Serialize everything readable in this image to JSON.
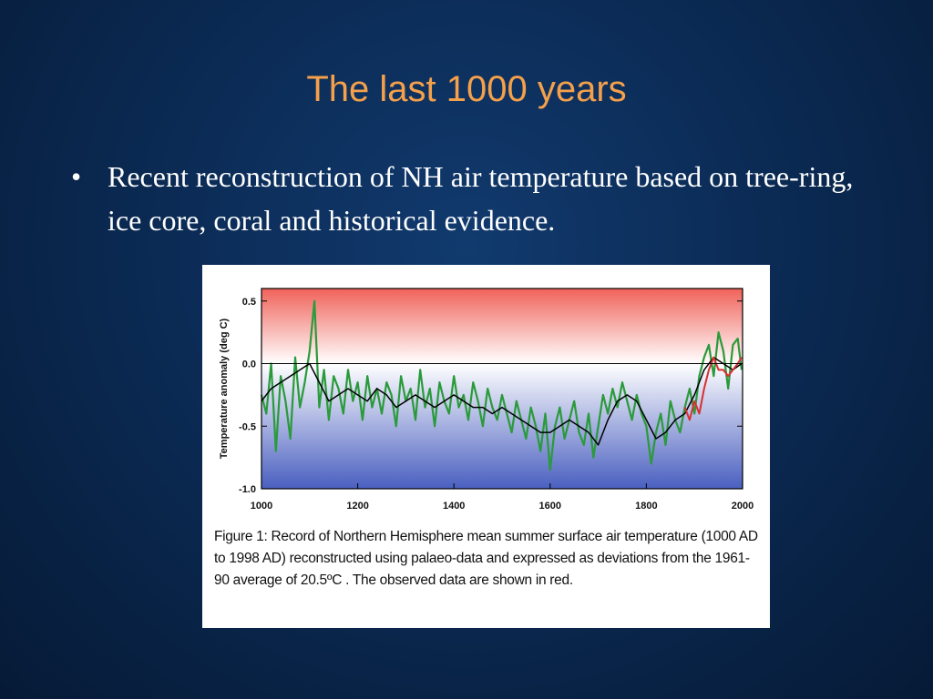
{
  "slide": {
    "title": "The last 1000 years",
    "bullets": [
      {
        "marker": "•",
        "text": "Recent reconstruction of NH air temperature based on tree-ring, ice core, coral and historical evidence."
      }
    ]
  },
  "figure": {
    "caption": "Figure 1:  Record of Northern Hemisphere mean summer surface air temperature (1000 AD to 1998 AD) reconstructed using palaeo-data and expressed as deviations from the 1961-90 average of 20.5ºC . The observed data are shown in red."
  },
  "chart_data": {
    "type": "line",
    "ylabel": "Temperature anomaly (deg C)",
    "xlim": [
      1000,
      2000
    ],
    "ylim": [
      -1.0,
      0.6
    ],
    "x_ticks": [
      1000,
      1200,
      1400,
      1600,
      1800,
      2000
    ],
    "x_tick_labels": [
      "1000",
      "1200",
      "1400",
      "1600",
      "1800",
      "2000"
    ],
    "y_ticks": [
      0.5,
      0.0,
      -0.5,
      -1.0
    ],
    "y_tick_labels": [
      "0.5",
      "0.0",
      "-0.5",
      "-1.0"
    ],
    "reference_line": 0.0,
    "background": {
      "warm": "#f0625a",
      "cool": "#4a5fc0",
      "neutral": "#ffffff"
    },
    "colors": {
      "annual": "#2a9a3a",
      "smoothed": "#000000",
      "observed": "#d83030",
      "axis": "#000000"
    },
    "series": [
      {
        "key": "annual",
        "x": [
          1000,
          1010,
          1020,
          1030,
          1040,
          1050,
          1060,
          1070,
          1080,
          1090,
          1100,
          1110,
          1120,
          1130,
          1140,
          1150,
          1160,
          1170,
          1180,
          1190,
          1200,
          1210,
          1220,
          1230,
          1240,
          1250,
          1260,
          1270,
          1280,
          1290,
          1300,
          1310,
          1320,
          1330,
          1340,
          1350,
          1360,
          1370,
          1380,
          1390,
          1400,
          1410,
          1420,
          1430,
          1440,
          1450,
          1460,
          1470,
          1480,
          1490,
          1500,
          1510,
          1520,
          1530,
          1540,
          1550,
          1560,
          1570,
          1580,
          1590,
          1600,
          1610,
          1620,
          1630,
          1640,
          1650,
          1660,
          1670,
          1680,
          1690,
          1700,
          1710,
          1720,
          1730,
          1740,
          1750,
          1760,
          1770,
          1780,
          1790,
          1800,
          1810,
          1820,
          1830,
          1840,
          1850,
          1860,
          1870,
          1880,
          1890,
          1900,
          1910,
          1920,
          1930,
          1940,
          1950,
          1960,
          1970,
          1980,
          1990,
          1998
        ],
        "y": [
          -0.25,
          -0.4,
          0.0,
          -0.7,
          -0.1,
          -0.3,
          -0.6,
          0.05,
          -0.35,
          -0.15,
          0.1,
          0.5,
          -0.35,
          -0.05,
          -0.45,
          -0.1,
          -0.2,
          -0.4,
          -0.05,
          -0.3,
          -0.15,
          -0.45,
          -0.1,
          -0.35,
          -0.2,
          -0.4,
          -0.15,
          -0.25,
          -0.5,
          -0.1,
          -0.3,
          -0.2,
          -0.45,
          -0.05,
          -0.35,
          -0.2,
          -0.5,
          -0.15,
          -0.3,
          -0.4,
          -0.1,
          -0.35,
          -0.25,
          -0.45,
          -0.15,
          -0.3,
          -0.5,
          -0.2,
          -0.35,
          -0.45,
          -0.25,
          -0.4,
          -0.55,
          -0.3,
          -0.45,
          -0.6,
          -0.35,
          -0.5,
          -0.7,
          -0.4,
          -0.85,
          -0.5,
          -0.35,
          -0.6,
          -0.45,
          -0.3,
          -0.55,
          -0.65,
          -0.4,
          -0.75,
          -0.5,
          -0.25,
          -0.4,
          -0.2,
          -0.35,
          -0.15,
          -0.3,
          -0.45,
          -0.25,
          -0.4,
          -0.5,
          -0.8,
          -0.55,
          -0.4,
          -0.65,
          -0.3,
          -0.45,
          -0.55,
          -0.35,
          -0.2,
          -0.4,
          -0.1,
          0.05,
          0.15,
          -0.1,
          0.25,
          0.1,
          -0.2,
          0.15,
          0.2,
          -0.05
        ]
      },
      {
        "key": "smoothed",
        "x": [
          1000,
          1020,
          1040,
          1060,
          1080,
          1100,
          1120,
          1140,
          1160,
          1180,
          1200,
          1220,
          1240,
          1260,
          1280,
          1300,
          1320,
          1340,
          1360,
          1380,
          1400,
          1420,
          1440,
          1460,
          1480,
          1500,
          1520,
          1540,
          1560,
          1580,
          1600,
          1620,
          1640,
          1660,
          1680,
          1700,
          1720,
          1740,
          1760,
          1780,
          1800,
          1820,
          1840,
          1860,
          1880,
          1900,
          1920,
          1940,
          1960,
          1980,
          1998
        ],
        "y": [
          -0.3,
          -0.2,
          -0.15,
          -0.1,
          -0.05,
          0.0,
          -0.15,
          -0.3,
          -0.25,
          -0.2,
          -0.25,
          -0.3,
          -0.2,
          -0.25,
          -0.35,
          -0.3,
          -0.25,
          -0.3,
          -0.35,
          -0.3,
          -0.25,
          -0.3,
          -0.35,
          -0.35,
          -0.4,
          -0.35,
          -0.4,
          -0.45,
          -0.5,
          -0.55,
          -0.55,
          -0.5,
          -0.45,
          -0.5,
          -0.55,
          -0.65,
          -0.45,
          -0.3,
          -0.25,
          -0.3,
          -0.45,
          -0.6,
          -0.55,
          -0.45,
          -0.4,
          -0.25,
          -0.05,
          0.05,
          0.0,
          -0.05,
          0.0
        ]
      },
      {
        "key": "observed",
        "x": [
          1880,
          1890,
          1900,
          1910,
          1920,
          1930,
          1940,
          1950,
          1960,
          1970,
          1980,
          1990,
          1998
        ],
        "y": [
          -0.35,
          -0.45,
          -0.3,
          -0.4,
          -0.2,
          -0.05,
          0.05,
          -0.05,
          -0.05,
          -0.1,
          -0.05,
          0.0,
          0.05
        ]
      }
    ]
  }
}
